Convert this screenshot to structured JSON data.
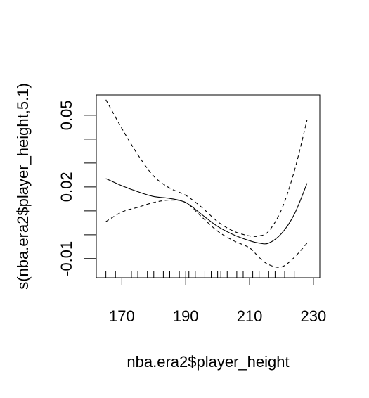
{
  "chart_data": {
    "type": "line",
    "title": "",
    "xlabel": "nba.era2$player_height",
    "ylabel": "s(nba.era2$player_height,5.1)",
    "xlim": [
      162,
      232
    ],
    "ylim": [
      -0.018,
      0.0585
    ],
    "x_ticks": [
      170,
      190,
      210,
      230
    ],
    "x_tick_labels": [
      "170",
      "190",
      "210",
      "230"
    ],
    "x_minor_ticks": [
      170,
      175,
      180,
      185,
      190,
      195,
      200,
      205,
      210,
      215,
      220,
      225,
      230
    ],
    "y_ticks": [
      -0.01,
      0.0,
      0.01,
      0.02,
      0.03,
      0.04,
      0.05
    ],
    "y_tick_labels": [
      {
        "value": -0.01,
        "label": "-0.01"
      },
      {
        "value": 0.02,
        "label": "0.02"
      },
      {
        "value": 0.05,
        "label": "0.05"
      }
    ],
    "rug": [
      165,
      168,
      173,
      175,
      178,
      180,
      183,
      185,
      188,
      190,
      191,
      193,
      196,
      198,
      200,
      201,
      203,
      206,
      208,
      211,
      213,
      216,
      218,
      221,
      224
    ],
    "grid": false,
    "legend": "none",
    "series": [
      {
        "style": "solid",
        "x": [
          165,
          170,
          175,
          180,
          185,
          190,
          195,
          200,
          205,
          210,
          213,
          216,
          220,
          224,
          228
        ],
        "y": [
          0.0235,
          0.0205,
          0.018,
          0.016,
          0.0152,
          0.0135,
          0.0085,
          0.0035,
          0.0,
          -0.0025,
          -0.0035,
          -0.0035,
          0.0005,
          0.0085,
          0.0215
        ]
      },
      {
        "style": "dashed",
        "x": [
          165,
          170,
          175,
          180,
          185,
          190,
          195,
          200,
          205,
          210,
          213,
          216,
          220,
          224,
          228
        ],
        "y": [
          0.0565,
          0.0445,
          0.0335,
          0.0245,
          0.0195,
          0.0165,
          0.0115,
          0.0055,
          0.0015,
          -0.0005,
          -0.0005,
          0.0015,
          0.0105,
          0.0265,
          0.048
        ]
      },
      {
        "style": "dashed",
        "x": [
          165,
          170,
          175,
          180,
          185,
          190,
          195,
          200,
          205,
          210,
          213,
          216,
          220,
          224,
          228
        ],
        "y": [
          0.0055,
          0.0095,
          0.0115,
          0.0135,
          0.0145,
          0.0135,
          0.0075,
          0.0015,
          -0.0025,
          -0.0055,
          -0.0095,
          -0.0125,
          -0.0135,
          -0.0095,
          -0.0035
        ]
      }
    ]
  }
}
